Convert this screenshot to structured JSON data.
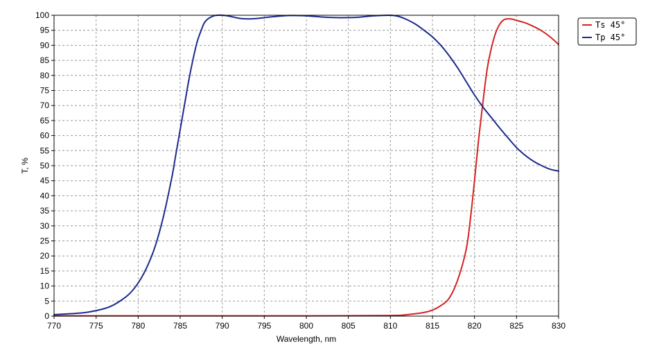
{
  "chart_data": {
    "type": "line",
    "title": "",
    "xlabel": "Wavelength, nm",
    "ylabel": "T, %",
    "xlim": [
      770,
      830
    ],
    "ylim": [
      0,
      100
    ],
    "x_ticks": [
      770,
      775,
      780,
      785,
      790,
      795,
      800,
      805,
      810,
      815,
      820,
      825,
      830
    ],
    "y_ticks": [
      0,
      5,
      10,
      15,
      20,
      25,
      30,
      35,
      40,
      45,
      50,
      55,
      60,
      65,
      70,
      75,
      80,
      85,
      90,
      95,
      100
    ],
    "grid": true,
    "legend_position": "top-right outside",
    "series": [
      {
        "name": "Ts 45°",
        "color": "#d42020",
        "x": [
          770,
          780,
          790,
          800,
          810,
          812,
          814,
          815,
          816,
          817,
          818,
          819,
          819.5,
          820,
          820.5,
          821,
          821.5,
          822,
          822.5,
          823,
          823.5,
          824,
          824.5,
          825,
          826,
          827,
          828,
          829,
          830
        ],
        "y": [
          0.1,
          0.1,
          0.1,
          0.1,
          0.2,
          0.5,
          1.2,
          2,
          3.5,
          6,
          12,
          22,
          32,
          45,
          59,
          71,
          82,
          89,
          94,
          97,
          98.5,
          98.8,
          98.7,
          98.3,
          97.5,
          96.3,
          94.8,
          92.8,
          90.3
        ]
      },
      {
        "name": "Tp 45°",
        "color": "#1a2a8c",
        "x": [
          770,
          772,
          774,
          776,
          777,
          778,
          779,
          780,
          781,
          782,
          783,
          784,
          784.5,
          785,
          785.5,
          786,
          786.5,
          787,
          787.5,
          788,
          789,
          790,
          791,
          792,
          793,
          794,
          796,
          798,
          800,
          802,
          804,
          806,
          808,
          810,
          811,
          812,
          813,
          814,
          815,
          816,
          817,
          818,
          819,
          820,
          821,
          822,
          823,
          824,
          825,
          826,
          827,
          828,
          829,
          830
        ],
        "y": [
          0.5,
          0.8,
          1.3,
          2.5,
          3.6,
          5.3,
          7.5,
          11,
          16,
          23,
          33,
          46,
          54,
          62,
          70,
          78,
          85,
          91,
          95,
          98,
          99.8,
          100,
          99.6,
          99,
          98.8,
          98.9,
          99.5,
          99.9,
          99.8,
          99.4,
          99.2,
          99.3,
          99.8,
          100,
          99.6,
          98.5,
          97,
          95,
          92.8,
          90,
          86.5,
          82.5,
          78,
          73.5,
          69.5,
          66,
          62.5,
          59.2,
          56,
          53.5,
          51.5,
          50,
          48.8,
          48.2
        ]
      }
    ]
  }
}
